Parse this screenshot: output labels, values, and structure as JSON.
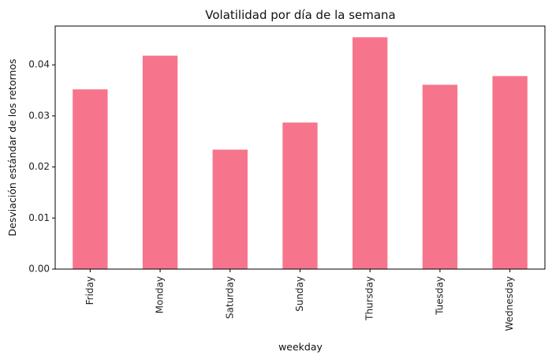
{
  "chart_data": {
    "type": "bar",
    "title": "Volatilidad por día de la semana",
    "xlabel": "weekday",
    "ylabel": "Desviación estándar de los retornos",
    "categories": [
      "Friday",
      "Monday",
      "Saturday",
      "Sunday",
      "Thursday",
      "Tuesday",
      "Wednesday"
    ],
    "values": [
      0.0352,
      0.0418,
      0.0234,
      0.0287,
      0.0454,
      0.0361,
      0.0378
    ],
    "ylim": [
      0,
      0.0476
    ],
    "yticks": [
      0.0,
      0.01,
      0.02,
      0.03,
      0.04
    ],
    "ytick_labels": [
      "0.00",
      "0.01",
      "0.02",
      "0.03",
      "0.04"
    ],
    "bar_color": "#f7758c",
    "grid": false,
    "legend": "none"
  }
}
